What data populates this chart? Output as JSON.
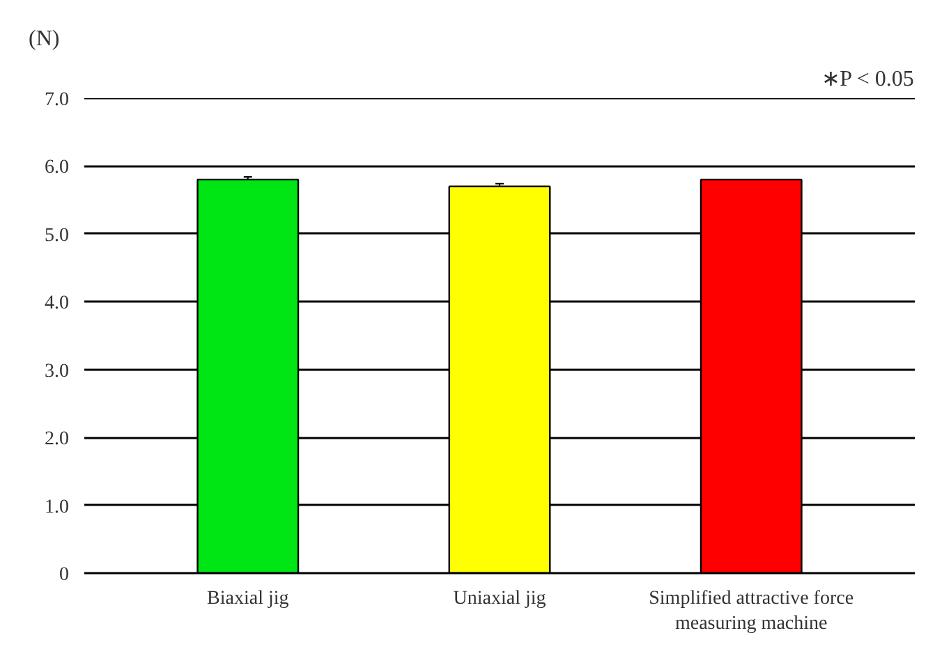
{
  "chart_data": {
    "type": "bar",
    "ylabel": "(N)",
    "annotations": [
      "∗P < 0.05"
    ],
    "categories": [
      "Biaxial jig",
      "Uniaxial jig",
      "Simplified attractive force measuring machine"
    ],
    "values": [
      5.8,
      5.7,
      5.8
    ],
    "errors": [
      0.04,
      0.04,
      null
    ],
    "colors": [
      "#00e614",
      "#ffff00",
      "#ff0000"
    ],
    "ylim": [
      0,
      7.0
    ],
    "yticks": [
      {
        "value": 0,
        "label": "0"
      },
      {
        "value": 1,
        "label": "1.0"
      },
      {
        "value": 2,
        "label": "2.0"
      },
      {
        "value": 3,
        "label": "3.0"
      },
      {
        "value": 4,
        "label": "4.0"
      },
      {
        "value": 5,
        "label": "5.0"
      },
      {
        "value": 6,
        "label": "6.0"
      },
      {
        "value": 7,
        "label": "7.0"
      }
    ],
    "grid": "y"
  }
}
